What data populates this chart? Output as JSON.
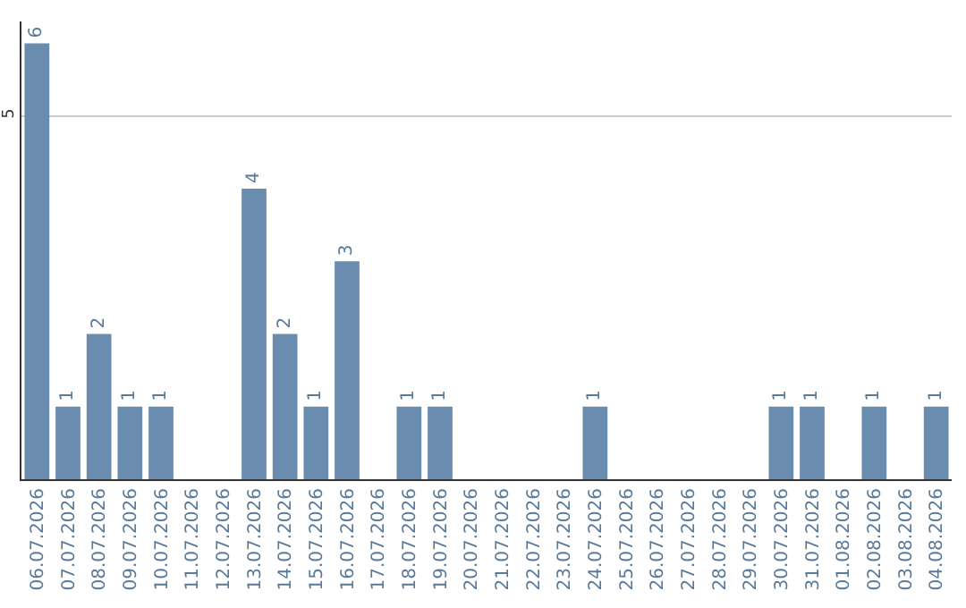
{
  "chart_data": {
    "type": "bar",
    "categories": [
      "06.07.2026",
      "07.07.2026",
      "08.07.2026",
      "09.07.2026",
      "10.07.2026",
      "11.07.2026",
      "12.07.2026",
      "13.07.2026",
      "14.07.2026",
      "15.07.2026",
      "16.07.2026",
      "17.07.2026",
      "18.07.2026",
      "19.07.2026",
      "20.07.2026",
      "21.07.2026",
      "22.07.2026",
      "23.07.2026",
      "24.07.2026",
      "25.07.2026",
      "26.07.2026",
      "27.07.2026",
      "28.07.2026",
      "29.07.2026",
      "30.07.2026",
      "31.07.2026",
      "01.08.2026",
      "02.08.2026",
      "03.08.2026",
      "04.08.2026"
    ],
    "values": [
      6,
      1,
      2,
      1,
      1,
      0,
      0,
      4,
      2,
      1,
      3,
      0,
      1,
      1,
      0,
      0,
      0,
      0,
      1,
      0,
      0,
      0,
      0,
      0,
      1,
      1,
      0,
      1,
      0,
      1
    ],
    "value_labels": [
      "6",
      "1",
      "2",
      "1",
      "1",
      null,
      null,
      "4",
      "2",
      "1",
      "3",
      null,
      "1",
      "1",
      null,
      null,
      null,
      null,
      "1",
      null,
      null,
      null,
      null,
      null,
      "1",
      "1",
      null,
      "1",
      null,
      "1"
    ],
    "color": "#6a8caf",
    "ylim": [
      0,
      6.3
    ],
    "yticks": [
      5
    ],
    "grid": "y"
  }
}
